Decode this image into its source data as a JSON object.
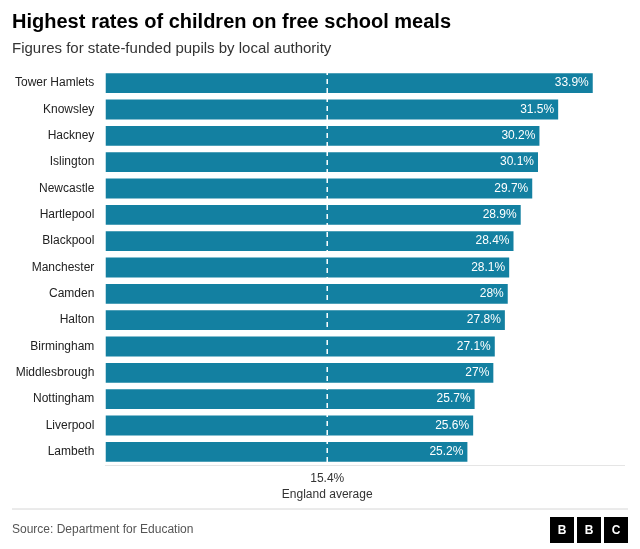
{
  "chart_data": {
    "type": "bar",
    "orientation": "horizontal",
    "title": "Highest rates of children on free school meals",
    "subtitle": "Figures for state-funded pupils by local authority",
    "source": "Source: Department for Education",
    "logo": "BBC",
    "categories": [
      "Tower Hamlets",
      "Knowsley",
      "Hackney",
      "Islington",
      "Newcastle",
      "Hartlepool",
      "Blackpool",
      "Manchester",
      "Camden",
      "Halton",
      "Birmingham",
      "Middlesbrough",
      "Nottingham",
      "Liverpool",
      "Lambeth"
    ],
    "values": [
      33.9,
      31.5,
      30.2,
      30.1,
      29.7,
      28.9,
      28.4,
      28.1,
      28.0,
      27.8,
      27.1,
      27.0,
      25.7,
      25.6,
      25.2
    ],
    "value_labels": [
      "33.9%",
      "31.5%",
      "30.2%",
      "30.1%",
      "29.7%",
      "28.9%",
      "28.4%",
      "28.1%",
      "28%",
      "27.8%",
      "27.1%",
      "27%",
      "25.7%",
      "25.6%",
      "25.2%"
    ],
    "data_labels": true,
    "color": "#1380A1",
    "xlim": [
      0,
      36
    ],
    "tick_labels": "y",
    "grid": false,
    "annotations": [
      {
        "x": 15.4,
        "text": [
          "15.4%",
          "England average"
        ]
      }
    ]
  }
}
